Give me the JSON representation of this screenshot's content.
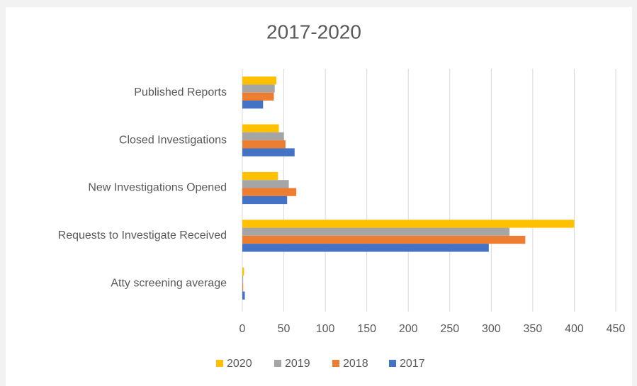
{
  "chart_data": {
    "type": "bar",
    "orientation": "horizontal",
    "title": "2017-2020",
    "categories": [
      "Atty screening average",
      "Requests to Investigate Received",
      "New Investigations Opened",
      "Closed Investigations",
      "Published Reports"
    ],
    "series": [
      {
        "name": "2020",
        "color": "#ffc000",
        "values": [
          2,
          400,
          43,
          44,
          41
        ]
      },
      {
        "name": "2019",
        "color": "#a5a5a5",
        "values": [
          1,
          322,
          56,
          50,
          39
        ]
      },
      {
        "name": "2018",
        "color": "#ed7d31",
        "values": [
          1,
          341,
          65,
          52,
          38
        ]
      },
      {
        "name": "2017",
        "color": "#4472c4",
        "values": [
          3,
          297,
          54,
          63,
          25
        ]
      }
    ],
    "xlim": [
      0,
      450
    ],
    "xticks": [
      0,
      50,
      100,
      150,
      200,
      250,
      300,
      350,
      400,
      450
    ],
    "grid": true,
    "legend": "bottom"
  }
}
